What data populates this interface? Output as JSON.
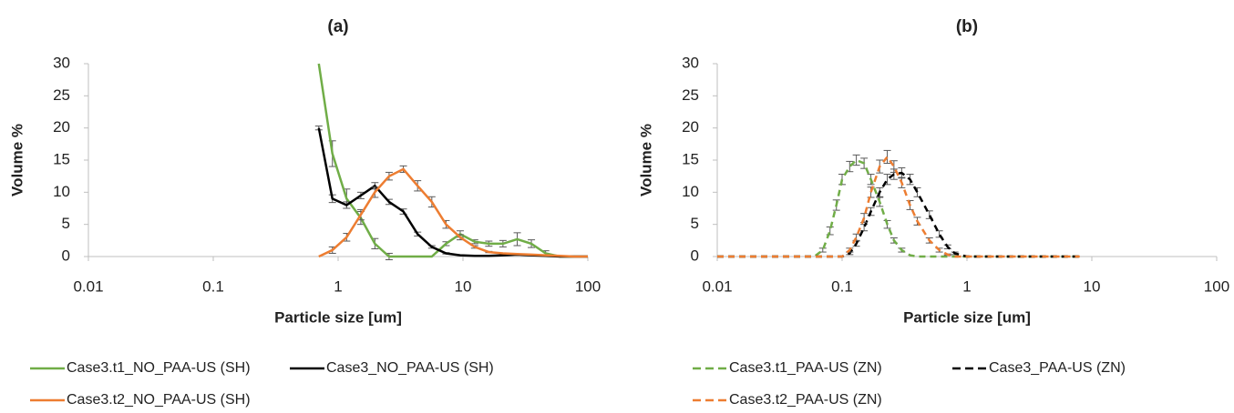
{
  "chart_data": [
    {
      "type": "line",
      "title": "(a)",
      "x_label": "Particle size [um]",
      "y_label": "Volume %",
      "xlog": true,
      "xlim": [
        0.01,
        100
      ],
      "xticks": [
        0.01,
        0.1,
        1,
        10,
        100
      ],
      "ylim": [
        0,
        30
      ],
      "yticks": [
        0,
        5,
        10,
        15,
        20,
        25,
        30
      ],
      "x": [
        0.7,
        0.9,
        1.17,
        1.52,
        1.97,
        2.56,
        3.33,
        4.33,
        5.63,
        7.32,
        9.5,
        12.4,
        16.1,
        20.9,
        27.2,
        35.3,
        45.9,
        59.7,
        77.6,
        100
      ],
      "series": [
        {
          "name": "Case3.t1_NO_PAA-US (SH)",
          "color": "#70ad47",
          "line_style": "solid",
          "values": [
            30,
            16,
            9,
            6,
            2,
            0,
            0,
            0,
            0,
            2,
            3.5,
            2.3,
            2,
            2,
            2.7,
            2,
            0.5,
            0,
            0,
            0
          ],
          "errors": [
            0,
            2,
            1.5,
            1,
            0.8,
            0.5,
            0,
            0,
            0,
            0.3,
            0.5,
            0.3,
            0.4,
            0.5,
            1,
            0.6,
            0.4,
            0,
            0,
            0
          ]
        },
        {
          "name": "Case3_NO_PAA-US (SH)",
          "color": "#000000",
          "line_style": "solid",
          "values": [
            20,
            9,
            8,
            9.5,
            11,
            8.5,
            7,
            3.5,
            1.5,
            0.5,
            0.2,
            0.1,
            0.1,
            0.2,
            0.3,
            0.2,
            0.1,
            0,
            0,
            0
          ],
          "errors": [
            0.3,
            0.6,
            0.5,
            0.5,
            0.5,
            0.4,
            0.4,
            0.3,
            0.2,
            0.1,
            0,
            0,
            0,
            0,
            0,
            0,
            0,
            0,
            0,
            0
          ]
        },
        {
          "name": "Case3.t2_NO_PAA-US (SH)",
          "color": "#ed7d31",
          "line_style": "solid",
          "values": [
            0,
            1,
            3,
            6.5,
            10,
            12.5,
            13.6,
            11,
            8.5,
            5,
            3,
            1.5,
            0.7,
            0.5,
            0.4,
            0.3,
            0.2,
            0.1,
            0,
            0
          ],
          "errors": [
            0,
            0.5,
            0.6,
            0.8,
            0.8,
            0.6,
            0.5,
            0.8,
            0.8,
            0.6,
            0.4,
            0.2,
            0.1,
            0,
            0,
            0,
            0,
            0,
            0,
            0
          ]
        }
      ]
    },
    {
      "type": "line",
      "title": "(b)",
      "x_label": "Particle size [um]",
      "y_label": "Volume %",
      "xlog": true,
      "xlim": [
        0.01,
        100
      ],
      "xticks": [
        0.01,
        0.1,
        1,
        10,
        100
      ],
      "ylim": [
        0,
        30
      ],
      "yticks": [
        0,
        5,
        10,
        15,
        20,
        25,
        30
      ],
      "x": [
        0.01,
        0.02,
        0.04,
        0.06,
        0.07,
        0.08,
        0.09,
        0.1,
        0.115,
        0.13,
        0.15,
        0.17,
        0.2,
        0.23,
        0.26,
        0.3,
        0.35,
        0.4,
        0.5,
        0.6,
        0.7,
        0.8,
        1,
        2,
        4,
        8
      ],
      "series": [
        {
          "name": "Case3.t1_PAA-US (ZN)",
          "color": "#70ad47",
          "line_style": "dashed",
          "values": [
            0,
            0,
            0,
            0,
            1,
            4,
            8,
            12,
            14,
            15,
            14.5,
            12,
            8.5,
            5,
            2.5,
            1,
            0.2,
            0,
            0,
            0,
            0,
            0,
            0,
            0,
            0,
            0
          ],
          "errors": [
            0,
            0,
            0,
            0,
            0.3,
            0.6,
            0.8,
            0.8,
            0.8,
            0.8,
            0.8,
            0.8,
            0.7,
            0.6,
            0.4,
            0.3,
            0,
            0,
            0,
            0,
            0,
            0,
            0,
            0,
            0,
            0
          ]
        },
        {
          "name": "Case3_PAA-US (ZN)",
          "color": "#000000",
          "line_style": "dashed",
          "values": [
            0,
            0,
            0,
            0,
            0,
            0,
            0,
            0,
            0.5,
            2,
            4.5,
            7,
            10,
            12,
            12.8,
            13,
            12,
            10,
            6.5,
            3.5,
            1.5,
            0.5,
            0,
            0,
            0,
            0
          ],
          "errors": [
            0,
            0,
            0,
            0,
            0,
            0,
            0,
            0,
            0.2,
            0.4,
            0.5,
            0.6,
            0.7,
            0.8,
            0.8,
            0.8,
            0.8,
            0.7,
            0.6,
            0.5,
            0.3,
            0.2,
            0,
            0,
            0,
            0
          ]
        },
        {
          "name": "Case3.t2_PAA-US (ZN)",
          "color": "#ed7d31",
          "line_style": "dashed",
          "values": [
            0,
            0,
            0,
            0,
            0,
            0,
            0,
            0,
            1,
            3,
            6,
            10,
            14,
            15.5,
            14,
            11.5,
            8,
            5.5,
            2.5,
            1,
            0.3,
            0,
            0,
            0,
            0,
            0
          ],
          "errors": [
            0,
            0,
            0,
            0,
            0,
            0,
            0,
            0,
            0.3,
            0.5,
            0.7,
            0.8,
            1,
            1,
            0.9,
            0.8,
            0.7,
            0.6,
            0.4,
            0.3,
            0.1,
            0,
            0,
            0,
            0,
            0
          ]
        }
      ]
    }
  ]
}
